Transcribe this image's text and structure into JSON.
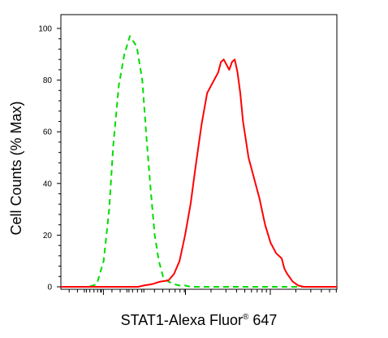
{
  "chart_data": {
    "type": "line",
    "title": "",
    "xlabel": "STAT1-Alexa Fluor",
    "xlabel_superscript": "®",
    "xlabel_suffix": " 647",
    "ylabel": "Cell Counts (% Max)",
    "ylim": [
      0,
      100
    ],
    "y_ticks": [
      0,
      20,
      40,
      60,
      80,
      100
    ],
    "x_scale": "log (tick labels not shown)",
    "x_ticks_labeled": [],
    "grid": false,
    "legend": "none",
    "series": [
      {
        "color": "#00dd00",
        "style": "dashed",
        "x": [
          0.0,
          0.1,
          0.13,
          0.155,
          0.175,
          0.19,
          0.21,
          0.23,
          0.25,
          0.275,
          0.295,
          0.31,
          0.325,
          0.34,
          0.355,
          0.37,
          0.39,
          0.41,
          0.43,
          0.45,
          0.47,
          0.5,
          0.6,
          1.0
        ],
        "y": [
          0,
          0,
          1,
          10,
          30,
          55,
          78,
          90,
          97,
          93,
          80,
          58,
          38,
          20,
          10,
          4,
          2,
          1,
          0.5,
          0.5,
          0,
          0,
          0,
          0
        ]
      },
      {
        "color": "#ff0000",
        "style": "solid",
        "x": [
          0.0,
          0.2,
          0.28,
          0.3,
          0.33,
          0.36,
          0.39,
          0.41,
          0.43,
          0.45,
          0.47,
          0.49,
          0.51,
          0.53,
          0.55,
          0.57,
          0.58,
          0.59,
          0.6,
          0.61,
          0.62,
          0.63,
          0.64,
          0.65,
          0.66,
          0.68,
          0.7,
          0.72,
          0.74,
          0.76,
          0.78,
          0.8,
          0.81,
          0.82,
          0.84,
          0.86,
          0.88,
          0.9,
          0.93,
          0.96,
          1.0
        ],
        "y": [
          0,
          0,
          0,
          0.5,
          1,
          2,
          2.5,
          5,
          10,
          20,
          32,
          48,
          63,
          75,
          79,
          83,
          87,
          88,
          86,
          84,
          87,
          88,
          83,
          75,
          64,
          50,
          42,
          34,
          24,
          17,
          13,
          11,
          7,
          5,
          2,
          0.5,
          0,
          0,
          0,
          0,
          0
        ]
      }
    ]
  }
}
